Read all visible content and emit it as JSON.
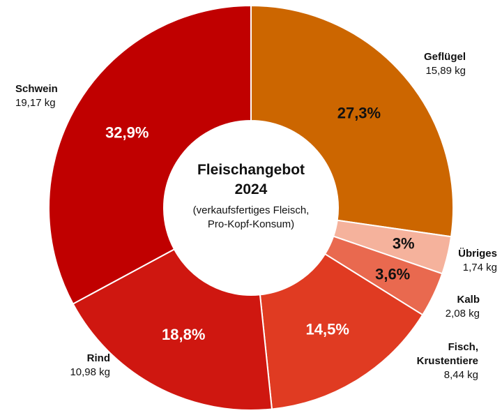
{
  "chart_data": {
    "type": "donut",
    "title": "Fleischangebot\n2024",
    "subtitle": "(verkaufsfertiges Fleisch,\nPro-Kopf-Konsum)",
    "categories": [
      "Geflügel",
      "Übriges",
      "Kalb",
      "Fisch,\nKrustentiere",
      "Rind",
      "Schwein"
    ],
    "values": [
      27.3,
      3,
      3.6,
      14.5,
      18.8,
      32.9
    ],
    "value_labels": [
      "27,3%",
      "3%",
      "3,6%",
      "14,5%",
      "18,8%",
      "32,9%"
    ],
    "amounts": [
      15.89,
      1.74,
      2.08,
      8.44,
      10.98,
      19.17
    ],
    "amount_labels": [
      "15,89 kg",
      "1,74 kg",
      "2,08 kg",
      "8,44 kg",
      "10,98 kg",
      "19,17 kg"
    ],
    "colors": [
      "#cc6600",
      "#f5b29c",
      "#e9694f",
      "#e03b22",
      "#cf1710",
      "#c00000"
    ],
    "label_colors": [
      "#111111",
      "#111111",
      "#111111",
      "#ffffff",
      "#ffffff",
      "#ffffff"
    ]
  }
}
